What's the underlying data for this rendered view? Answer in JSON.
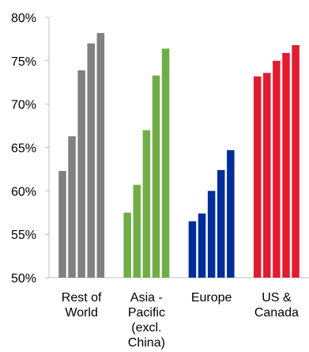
{
  "chart_data": {
    "type": "bar",
    "title": "",
    "xlabel": "",
    "ylabel": "",
    "ylim": [
      0.5,
      0.8
    ],
    "yticks": [
      "50%",
      "55%",
      "60%",
      "65%",
      "70%",
      "75%",
      "80%"
    ],
    "grid": false,
    "legend": "none",
    "groups": [
      {
        "label_lines": [
          "Rest of",
          "World"
        ],
        "color": "#808080",
        "values": [
          0.623,
          0.663,
          0.739,
          0.77,
          0.782
        ]
      },
      {
        "label_lines": [
          "Asia -",
          "Pacific",
          "(excl.",
          "China)"
        ],
        "color": "#70ad47",
        "values": [
          0.575,
          0.607,
          0.67,
          0.733,
          0.764
        ]
      },
      {
        "label_lines": [
          "Europe"
        ],
        "color": "#002d9c",
        "values": [
          0.565,
          0.574,
          0.6,
          0.624,
          0.647
        ]
      },
      {
        "label_lines": [
          "US &",
          "Canada"
        ],
        "color": "#e31b2f",
        "values": [
          0.732,
          0.736,
          0.75,
          0.759,
          0.768
        ]
      }
    ]
  }
}
